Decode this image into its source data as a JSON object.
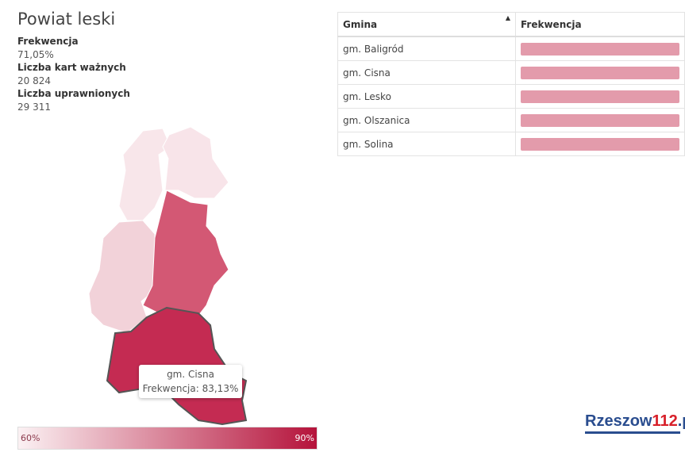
{
  "header": {
    "title": "Powiat leski"
  },
  "stats": [
    {
      "label": "Frekwencja",
      "value": "71,05%"
    },
    {
      "label": "Liczba kart ważnych",
      "value": "20 824"
    },
    {
      "label": "Liczba uprawnionych",
      "value": "29 311"
    }
  ],
  "table": {
    "headers": [
      "Gmina",
      "Frekwencja"
    ],
    "rows": [
      [
        "gm. Baligród"
      ],
      [
        "gm. Cisna"
      ],
      [
        "gm. Lesko"
      ],
      [
        "gm. Olszanica"
      ],
      [
        "gm. Solina"
      ]
    ]
  },
  "tooltip": {
    "name": "gm. Cisna",
    "text": "Frekwencja: 83,13%"
  },
  "legend": {
    "min": "60%",
    "max": "90%"
  },
  "logo": {
    "part1": "Rzeszow",
    "part2": "112",
    "part3": ".pl"
  }
}
